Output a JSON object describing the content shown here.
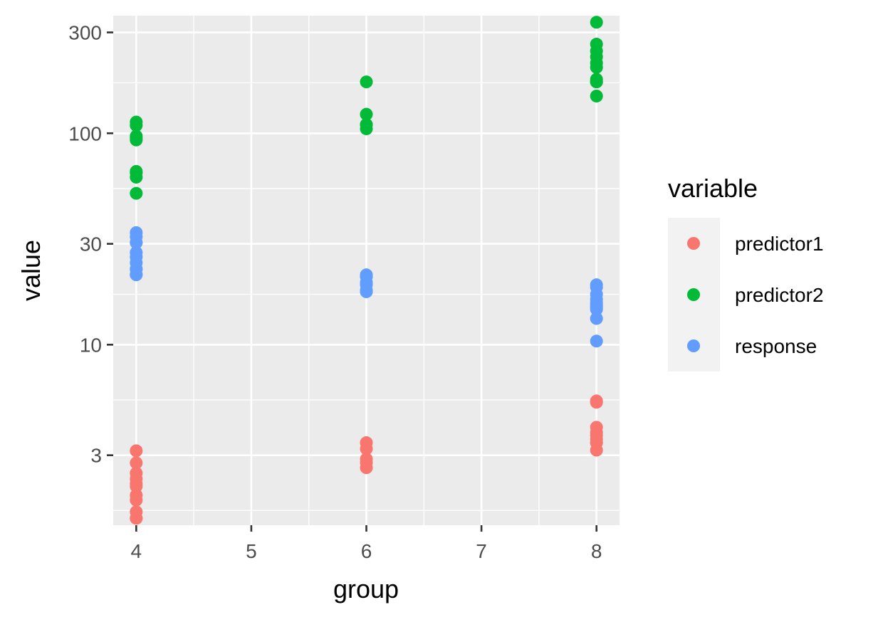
{
  "chart_data": {
    "type": "scatter",
    "xlabel": "group",
    "ylabel": "value",
    "x_ticks": [
      4,
      5,
      6,
      7,
      8
    ],
    "y_ticks": [
      3,
      10,
      30,
      100,
      300
    ],
    "y_scale": "log10",
    "xlim": [
      3.8,
      8.2
    ],
    "ylim": [
      1.4,
      360
    ],
    "grid": true,
    "legend": {
      "title": "variable",
      "position": "right"
    },
    "series": [
      {
        "name": "predictor1",
        "color": "#F8766D",
        "points": [
          [
            4,
            3.15
          ],
          [
            4,
            2.76
          ],
          [
            4,
            2.47
          ],
          [
            4,
            2.32
          ],
          [
            4,
            2.2
          ],
          [
            4,
            2.14
          ],
          [
            4,
            1.94
          ],
          [
            4,
            1.84
          ],
          [
            4,
            1.62
          ],
          [
            4,
            1.51
          ],
          [
            4,
            1.51
          ],
          [
            6,
            3.44
          ],
          [
            6,
            3.22
          ],
          [
            6,
            2.88
          ],
          [
            6,
            2.77
          ],
          [
            6,
            2.62
          ],
          [
            8,
            5.42
          ],
          [
            8,
            5.34
          ],
          [
            8,
            4.07
          ],
          [
            8,
            3.84
          ],
          [
            8,
            3.73
          ],
          [
            8,
            3.57
          ],
          [
            8,
            3.44
          ],
          [
            8,
            3.44
          ],
          [
            8,
            3.17
          ]
        ]
      },
      {
        "name": "predictor2",
        "color": "#00BA38",
        "points": [
          [
            4,
            113
          ],
          [
            4,
            109
          ],
          [
            4,
            97
          ],
          [
            4,
            95
          ],
          [
            4,
            93
          ],
          [
            4,
            66
          ],
          [
            4,
            65
          ],
          [
            4,
            62
          ],
          [
            4,
            52
          ],
          [
            6,
            175
          ],
          [
            6,
            123
          ],
          [
            6,
            110
          ],
          [
            6,
            110
          ],
          [
            6,
            105
          ],
          [
            8,
            335
          ],
          [
            8,
            264
          ],
          [
            8,
            245
          ],
          [
            8,
            230
          ],
          [
            8,
            215
          ],
          [
            8,
            205
          ],
          [
            8,
            180
          ],
          [
            8,
            175
          ],
          [
            8,
            175
          ],
          [
            8,
            150
          ]
        ]
      },
      {
        "name": "response",
        "color": "#619CFF",
        "points": [
          [
            4,
            33.9
          ],
          [
            4,
            32.4
          ],
          [
            4,
            30.4
          ],
          [
            4,
            30.4
          ],
          [
            4,
            27.3
          ],
          [
            4,
            26.0
          ],
          [
            4,
            24.4
          ],
          [
            4,
            22.8
          ],
          [
            4,
            22.8
          ],
          [
            4,
            21.5
          ],
          [
            4,
            21.4
          ],
          [
            6,
            21.4
          ],
          [
            6,
            21.0
          ],
          [
            6,
            21.0
          ],
          [
            6,
            19.7
          ],
          [
            6,
            19.2
          ],
          [
            6,
            18.1
          ],
          [
            6,
            17.8
          ],
          [
            8,
            19.2
          ],
          [
            8,
            18.7
          ],
          [
            8,
            17.3
          ],
          [
            8,
            16.4
          ],
          [
            8,
            15.8
          ],
          [
            8,
            15.5
          ],
          [
            8,
            15.2
          ],
          [
            8,
            15.0
          ],
          [
            8,
            14.7
          ],
          [
            8,
            13.3
          ],
          [
            8,
            10.4
          ]
        ]
      }
    ]
  }
}
